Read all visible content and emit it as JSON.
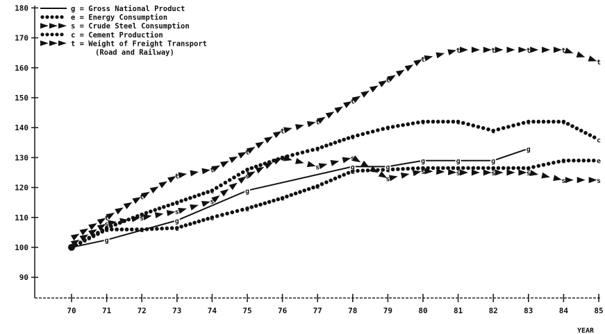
{
  "chart_data": {
    "type": "line",
    "title": "",
    "xlabel": "YEAR",
    "ylabel": "",
    "x": [
      70,
      71,
      72,
      73,
      74,
      75,
      76,
      77,
      78,
      79,
      80,
      81,
      82,
      83,
      84,
      85
    ],
    "x_tick_labels": [
      "70",
      "71",
      "72",
      "73",
      "74",
      "75",
      "76",
      "77",
      "78",
      "79",
      "80",
      "81",
      "82",
      "83",
      "84",
      "85"
    ],
    "y_tick_labels": [
      "180",
      "170",
      "160",
      "150",
      "140",
      "130",
      "120",
      "110",
      "100",
      "90"
    ],
    "xlim": [
      69,
      85
    ],
    "ylim": [
      80,
      180
    ],
    "legend_position": "top-left",
    "legend": [
      {
        "key": "g",
        "line": "g = Gross National Product"
      },
      {
        "key": "e",
        "line": "e = Energy Consumption"
      },
      {
        "key": "s",
        "line": "s = Crude Steel Consumption"
      },
      {
        "key": "c",
        "line": "c = Cement Production"
      },
      {
        "key": "t",
        "line": "t = Weight of Freight Transport"
      },
      {
        "key": "t2",
        "line": "(Road and Railway)"
      }
    ],
    "series": [
      {
        "name": "Gross National Product",
        "marker": "g",
        "style": "solid",
        "x": [
          70,
          71,
          73,
          75,
          78,
          79,
          80,
          81,
          82,
          83
        ],
        "values": [
          100,
          102.5,
          109,
          119,
          127,
          127,
          129,
          129,
          129,
          133
        ]
      },
      {
        "name": "Energy Consumption",
        "marker": "e",
        "style": "dots",
        "x": [
          70,
          71,
          72,
          73,
          74,
          75,
          76,
          77,
          78,
          79,
          80,
          81,
          82,
          83,
          84,
          85
        ],
        "values": [
          100,
          106,
          106,
          106.5,
          110,
          113,
          116.5,
          120.5,
          125.5,
          126,
          126.5,
          126.5,
          126.5,
          126.5,
          129,
          129
        ]
      },
      {
        "name": "Crude Steel Consumption",
        "marker": "s",
        "style": "arrows",
        "x": [
          70,
          71,
          72,
          73,
          74,
          75,
          76,
          77,
          78,
          79,
          80,
          81,
          82,
          83,
          84,
          85
        ],
        "values": [
          101,
          108,
          110,
          112,
          115.5,
          124,
          130,
          127,
          130,
          123,
          125.5,
          125,
          125,
          125,
          122.5,
          122.5
        ]
      },
      {
        "name": "Cement Production",
        "marker": "c",
        "style": "dots",
        "x": [
          70,
          71,
          72,
          73,
          74,
          75,
          76,
          77,
          78,
          79,
          80,
          81,
          82,
          83,
          84,
          85
        ],
        "values": [
          100,
          106.5,
          111,
          115,
          119,
          126,
          130,
          133,
          137,
          140,
          142,
          142,
          139,
          142,
          142,
          136
        ]
      },
      {
        "name": "Weight of Freight Transport (Road and Railway)",
        "marker": "t",
        "style": "arrows",
        "x": [
          70,
          71,
          72,
          73,
          74,
          75,
          76,
          77,
          78,
          79,
          80,
          81,
          82,
          83,
          84,
          85
        ],
        "values": [
          103,
          110,
          117,
          124,
          126,
          132,
          139,
          142,
          149,
          156,
          163,
          166,
          166,
          166,
          166,
          162
        ]
      }
    ]
  }
}
